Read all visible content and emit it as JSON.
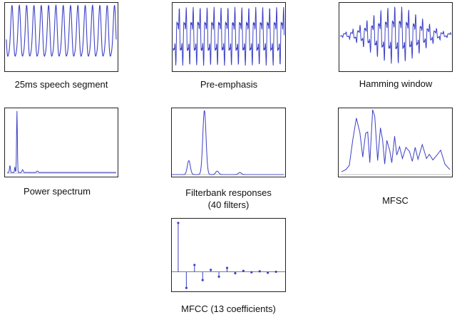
{
  "labels": {
    "speech_segment": "25ms speech segment",
    "pre_emphasis": "Pre-emphasis",
    "hamming_window": "Hamming window",
    "power_spectrum": "Power spectrum",
    "filterbank_line1": "Filterbank responses",
    "filterbank_line2": "(40 filters)",
    "mfsc": "MFSC",
    "mfcc": "MFCC (13 coefficients)"
  },
  "colors": {
    "signal": "#3b3fc4",
    "frame": "#222222"
  },
  "mfcc_coefficients": [
    1.0,
    -0.33,
    0.14,
    -0.17,
    0.04,
    -0.1,
    0.08,
    -0.03,
    0.02,
    -0.01,
    0.01,
    -0.02,
    0.0
  ]
}
